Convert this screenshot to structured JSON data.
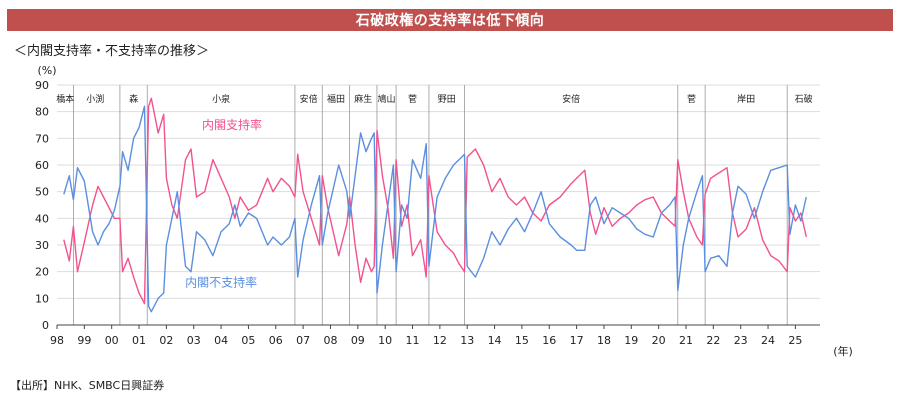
{
  "header": {
    "title": "石破政権の支持率は低下傾向",
    "subtitle": "＜内閣支持率・不支持率の推移＞",
    "source": "【出所】NHK、SMBC日興証券"
  },
  "colors": {
    "banner": "#c0504d",
    "approval": "#f2528f",
    "disapproval": "#5b8fe0"
  },
  "chart_data": {
    "type": "line",
    "yunit": "(%)",
    "xunit": "(年)",
    "ylim": [
      0,
      90
    ],
    "yticks": [
      0,
      10,
      20,
      30,
      40,
      50,
      60,
      70,
      80,
      90
    ],
    "xlim": [
      1998,
      2025.9
    ],
    "xticks": [
      {
        "year": 1998,
        "label": "98"
      },
      {
        "year": 1999,
        "label": "99"
      },
      {
        "year": 2000,
        "label": "00"
      },
      {
        "year": 2001,
        "label": "01"
      },
      {
        "year": 2002,
        "label": "02"
      },
      {
        "year": 2003,
        "label": "03"
      },
      {
        "year": 2004,
        "label": "04"
      },
      {
        "year": 2005,
        "label": "05"
      },
      {
        "year": 2006,
        "label": "06"
      },
      {
        "year": 2007,
        "label": "07"
      },
      {
        "year": 2008,
        "label": "08"
      },
      {
        "year": 2009,
        "label": "09"
      },
      {
        "year": 2010,
        "label": "10"
      },
      {
        "year": 2011,
        "label": "11"
      },
      {
        "year": 2012,
        "label": "12"
      },
      {
        "year": 2013,
        "label": "13"
      },
      {
        "year": 2014,
        "label": "14"
      },
      {
        "year": 2015,
        "label": "15"
      },
      {
        "year": 2016,
        "label": "16"
      },
      {
        "year": 2017,
        "label": "17"
      },
      {
        "year": 2018,
        "label": "18"
      },
      {
        "year": 2019,
        "label": "19"
      },
      {
        "year": 2020,
        "label": "20"
      },
      {
        "year": 2021,
        "label": "21"
      },
      {
        "year": 2022,
        "label": "22"
      },
      {
        "year": 2023,
        "label": "23"
      },
      {
        "year": 2024,
        "label": "24"
      },
      {
        "year": 2025,
        "label": "25"
      }
    ],
    "pm_boundaries": [
      1998.6,
      2000.3,
      2001.3,
      2006.7,
      2007.7,
      2008.7,
      2009.7,
      2010.4,
      2011.6,
      2012.9,
      2020.7,
      2021.7,
      2024.7
    ],
    "pm_labels": [
      {
        "name": "橋本",
        "x": 1998.3
      },
      {
        "name": "小渕",
        "x": 1999.4
      },
      {
        "name": "森",
        "x": 2000.8
      },
      {
        "name": "小泉",
        "x": 2004.0
      },
      {
        "name": "安倍",
        "x": 2007.2
      },
      {
        "name": "福田",
        "x": 2008.2
      },
      {
        "name": "麻生",
        "x": 2009.2
      },
      {
        "name": "鳩山",
        "x": 2010.05
      },
      {
        "name": "菅",
        "x": 2011.0
      },
      {
        "name": "野田",
        "x": 2012.25
      },
      {
        "name": "安倍",
        "x": 2016.8
      },
      {
        "name": "菅",
        "x": 2021.2
      },
      {
        "name": "岸田",
        "x": 2023.2
      },
      {
        "name": "石破",
        "x": 2025.3
      }
    ],
    "series": [
      {
        "name": "内閣支持率",
        "points": [
          [
            1998.25,
            32
          ],
          [
            1998.45,
            24
          ],
          [
            1998.6,
            37
          ],
          [
            1998.75,
            20
          ],
          [
            1999.0,
            31
          ],
          [
            1999.3,
            45
          ],
          [
            1999.5,
            52
          ],
          [
            1999.7,
            48
          ],
          [
            1999.9,
            44
          ],
          [
            2000.1,
            40
          ],
          [
            2000.3,
            40
          ],
          [
            2000.4,
            20
          ],
          [
            2000.6,
            25
          ],
          [
            2000.8,
            18
          ],
          [
            2001.0,
            12
          ],
          [
            2001.2,
            8
          ],
          [
            2001.35,
            82
          ],
          [
            2001.45,
            85
          ],
          [
            2001.7,
            72
          ],
          [
            2001.9,
            79
          ],
          [
            2002.0,
            55
          ],
          [
            2002.2,
            45
          ],
          [
            2002.4,
            40
          ],
          [
            2002.7,
            62
          ],
          [
            2002.9,
            66
          ],
          [
            2003.1,
            48
          ],
          [
            2003.4,
            50
          ],
          [
            2003.7,
            62
          ],
          [
            2004.0,
            55
          ],
          [
            2004.3,
            48
          ],
          [
            2004.5,
            40
          ],
          [
            2004.7,
            48
          ],
          [
            2005.0,
            43
          ],
          [
            2005.3,
            45
          ],
          [
            2005.7,
            55
          ],
          [
            2005.9,
            50
          ],
          [
            2006.2,
            55
          ],
          [
            2006.5,
            52
          ],
          [
            2006.7,
            48
          ],
          [
            2006.8,
            64
          ],
          [
            2007.0,
            50
          ],
          [
            2007.3,
            40
          ],
          [
            2007.6,
            30
          ],
          [
            2007.7,
            56
          ],
          [
            2007.9,
            44
          ],
          [
            2008.3,
            26
          ],
          [
            2008.6,
            38
          ],
          [
            2008.7,
            48
          ],
          [
            2008.9,
            30
          ],
          [
            2009.1,
            16
          ],
          [
            2009.3,
            25
          ],
          [
            2009.5,
            20
          ],
          [
            2009.6,
            22
          ],
          [
            2009.7,
            73
          ],
          [
            2009.9,
            56
          ],
          [
            2010.1,
            44
          ],
          [
            2010.3,
            25
          ],
          [
            2010.4,
            62
          ],
          [
            2010.6,
            37
          ],
          [
            2010.8,
            45
          ],
          [
            2011.0,
            26
          ],
          [
            2011.3,
            32
          ],
          [
            2011.5,
            18
          ],
          [
            2011.6,
            56
          ],
          [
            2011.9,
            35
          ],
          [
            2012.2,
            30
          ],
          [
            2012.5,
            27
          ],
          [
            2012.7,
            23
          ],
          [
            2012.9,
            20
          ],
          [
            2013.0,
            63
          ],
          [
            2013.3,
            66
          ],
          [
            2013.6,
            60
          ],
          [
            2013.9,
            50
          ],
          [
            2014.2,
            55
          ],
          [
            2014.5,
            48
          ],
          [
            2014.8,
            45
          ],
          [
            2015.1,
            48
          ],
          [
            2015.4,
            42
          ],
          [
            2015.7,
            39
          ],
          [
            2016.0,
            45
          ],
          [
            2016.4,
            48
          ],
          [
            2016.8,
            53
          ],
          [
            2017.0,
            55
          ],
          [
            2017.3,
            58
          ],
          [
            2017.5,
            42
          ],
          [
            2017.7,
            34
          ],
          [
            2018.0,
            44
          ],
          [
            2018.3,
            37
          ],
          [
            2018.6,
            40
          ],
          [
            2018.9,
            42
          ],
          [
            2019.2,
            45
          ],
          [
            2019.5,
            47
          ],
          [
            2019.8,
            48
          ],
          [
            2020.1,
            42
          ],
          [
            2020.4,
            39
          ],
          [
            2020.6,
            37
          ],
          [
            2020.7,
            62
          ],
          [
            2020.9,
            50
          ],
          [
            2021.1,
            40
          ],
          [
            2021.4,
            33
          ],
          [
            2021.6,
            30
          ],
          [
            2021.7,
            49
          ],
          [
            2021.9,
            55
          ],
          [
            2022.2,
            57
          ],
          [
            2022.5,
            59
          ],
          [
            2022.7,
            42
          ],
          [
            2022.9,
            33
          ],
          [
            2023.2,
            36
          ],
          [
            2023.5,
            44
          ],
          [
            2023.8,
            32
          ],
          [
            2024.1,
            26
          ],
          [
            2024.4,
            24
          ],
          [
            2024.7,
            20
          ],
          [
            2024.8,
            44
          ],
          [
            2025.0,
            39
          ],
          [
            2025.2,
            42
          ],
          [
            2025.4,
            33
          ]
        ]
      },
      {
        "name": "内閣不支持率",
        "points": [
          [
            1998.25,
            49
          ],
          [
            1998.45,
            56
          ],
          [
            1998.6,
            47
          ],
          [
            1998.75,
            59
          ],
          [
            1999.0,
            54
          ],
          [
            1999.3,
            35
          ],
          [
            1999.5,
            30
          ],
          [
            1999.7,
            35
          ],
          [
            1999.9,
            38
          ],
          [
            2000.1,
            43
          ],
          [
            2000.3,
            52
          ],
          [
            2000.4,
            65
          ],
          [
            2000.6,
            58
          ],
          [
            2000.8,
            70
          ],
          [
            2001.0,
            74
          ],
          [
            2001.2,
            82
          ],
          [
            2001.35,
            7
          ],
          [
            2001.45,
            5
          ],
          [
            2001.7,
            10
          ],
          [
            2001.9,
            12
          ],
          [
            2002.0,
            30
          ],
          [
            2002.2,
            40
          ],
          [
            2002.4,
            50
          ],
          [
            2002.7,
            22
          ],
          [
            2002.9,
            20
          ],
          [
            2003.1,
            35
          ],
          [
            2003.4,
            32
          ],
          [
            2003.7,
            26
          ],
          [
            2004.0,
            35
          ],
          [
            2004.3,
            38
          ],
          [
            2004.5,
            45
          ],
          [
            2004.7,
            37
          ],
          [
            2005.0,
            42
          ],
          [
            2005.3,
            40
          ],
          [
            2005.7,
            30
          ],
          [
            2005.9,
            33
          ],
          [
            2006.2,
            30
          ],
          [
            2006.5,
            33
          ],
          [
            2006.7,
            40
          ],
          [
            2006.8,
            18
          ],
          [
            2007.0,
            32
          ],
          [
            2007.3,
            45
          ],
          [
            2007.6,
            56
          ],
          [
            2007.7,
            30
          ],
          [
            2007.9,
            42
          ],
          [
            2008.3,
            60
          ],
          [
            2008.6,
            50
          ],
          [
            2008.7,
            40
          ],
          [
            2008.9,
            56
          ],
          [
            2009.1,
            72
          ],
          [
            2009.3,
            65
          ],
          [
            2009.5,
            70
          ],
          [
            2009.6,
            72
          ],
          [
            2009.7,
            12
          ],
          [
            2009.9,
            30
          ],
          [
            2010.1,
            45
          ],
          [
            2010.3,
            60
          ],
          [
            2010.4,
            20
          ],
          [
            2010.6,
            45
          ],
          [
            2010.8,
            40
          ],
          [
            2011.0,
            62
          ],
          [
            2011.3,
            55
          ],
          [
            2011.5,
            68
          ],
          [
            2011.6,
            22
          ],
          [
            2011.9,
            48
          ],
          [
            2012.2,
            55
          ],
          [
            2012.5,
            60
          ],
          [
            2012.7,
            62
          ],
          [
            2012.9,
            64
          ],
          [
            2013.0,
            22
          ],
          [
            2013.3,
            18
          ],
          [
            2013.6,
            25
          ],
          [
            2013.9,
            35
          ],
          [
            2014.2,
            30
          ],
          [
            2014.5,
            36
          ],
          [
            2014.8,
            40
          ],
          [
            2015.1,
            35
          ],
          [
            2015.4,
            42
          ],
          [
            2015.7,
            50
          ],
          [
            2016.0,
            38
          ],
          [
            2016.4,
            33
          ],
          [
            2016.8,
            30
          ],
          [
            2017.0,
            28
          ],
          [
            2017.3,
            28
          ],
          [
            2017.5,
            45
          ],
          [
            2017.7,
            48
          ],
          [
            2018.0,
            38
          ],
          [
            2018.3,
            44
          ],
          [
            2018.6,
            42
          ],
          [
            2018.9,
            40
          ],
          [
            2019.2,
            36
          ],
          [
            2019.5,
            34
          ],
          [
            2019.8,
            33
          ],
          [
            2020.1,
            42
          ],
          [
            2020.4,
            45
          ],
          [
            2020.6,
            48
          ],
          [
            2020.7,
            13
          ],
          [
            2020.9,
            30
          ],
          [
            2021.1,
            40
          ],
          [
            2021.4,
            50
          ],
          [
            2021.6,
            56
          ],
          [
            2021.7,
            20
          ],
          [
            2021.9,
            25
          ],
          [
            2022.2,
            26
          ],
          [
            2022.5,
            22
          ],
          [
            2022.7,
            42
          ],
          [
            2022.9,
            52
          ],
          [
            2023.2,
            49
          ],
          [
            2023.5,
            40
          ],
          [
            2023.8,
            50
          ],
          [
            2024.1,
            58
          ],
          [
            2024.4,
            59
          ],
          [
            2024.7,
            60
          ],
          [
            2024.8,
            34
          ],
          [
            2025.0,
            45
          ],
          [
            2025.2,
            39
          ],
          [
            2025.4,
            48
          ]
        ]
      }
    ],
    "annotations": [
      {
        "text": "内閣支持率",
        "series": 0,
        "x": 2004.4,
        "y": 73.5
      },
      {
        "text": "内閣不支持率",
        "series": 1,
        "x": 2004.0,
        "y": 14.5
      }
    ]
  }
}
